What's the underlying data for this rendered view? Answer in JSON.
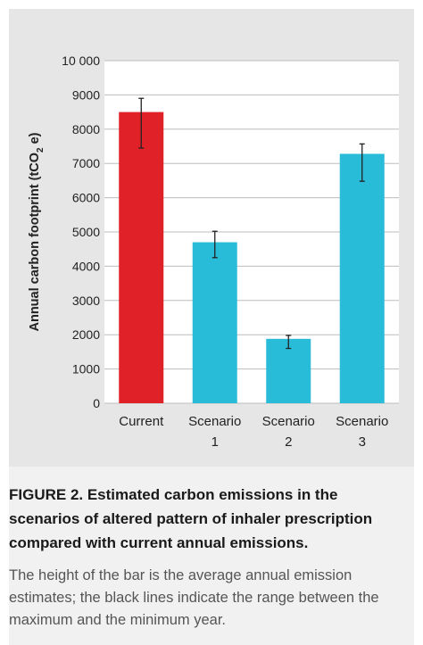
{
  "chart_data": {
    "type": "bar",
    "categories": [
      {
        "line1": "Current",
        "line2": ""
      },
      {
        "line1": "Scenario",
        "line2": "1"
      },
      {
        "line1": "Scenario",
        "line2": "2"
      },
      {
        "line1": "Scenario",
        "line2": "3"
      }
    ],
    "values": [
      8500,
      4700,
      1880,
      7280
    ],
    "error_min": [
      7450,
      4250,
      1600,
      6480
    ],
    "error_max": [
      8900,
      5020,
      1980,
      7570
    ],
    "bar_colors": [
      "#e02127",
      "#29bcd9",
      "#29bcd9",
      "#29bcd9"
    ],
    "ylabel": "Annual carbon footprint (tCO",
    "ylabel_sub": "2",
    "ylabel_end": " e)",
    "ylim": [
      0,
      10000
    ],
    "yticks": [
      {
        "value": 0,
        "label": "0"
      },
      {
        "value": 1000,
        "label": "1000"
      },
      {
        "value": 2000,
        "label": "2000"
      },
      {
        "value": 3000,
        "label": "3000"
      },
      {
        "value": 4000,
        "label": "4000"
      },
      {
        "value": 5000,
        "label": "5000"
      },
      {
        "value": 6000,
        "label": "6000"
      },
      {
        "value": 7000,
        "label": "7000"
      },
      {
        "value": 8000,
        "label": "8000"
      },
      {
        "value": 9000,
        "label": "9000"
      },
      {
        "value": 10000,
        "label": "10 000"
      }
    ],
    "grid": true
  },
  "caption": {
    "label": "FIGURE 2.",
    "title": " Estimated carbon emissions in the scenarios of altered pattern of inhaler prescription compared with current annual emissions.",
    "description": "The height of the bar is the average annual emission estimates; the black lines indicate the range between the maximum and the minimum year."
  },
  "colors": {
    "panel_background": "#e6e6e6",
    "plot_background": "#ffffff",
    "caption_background": "#f1f1f1"
  }
}
